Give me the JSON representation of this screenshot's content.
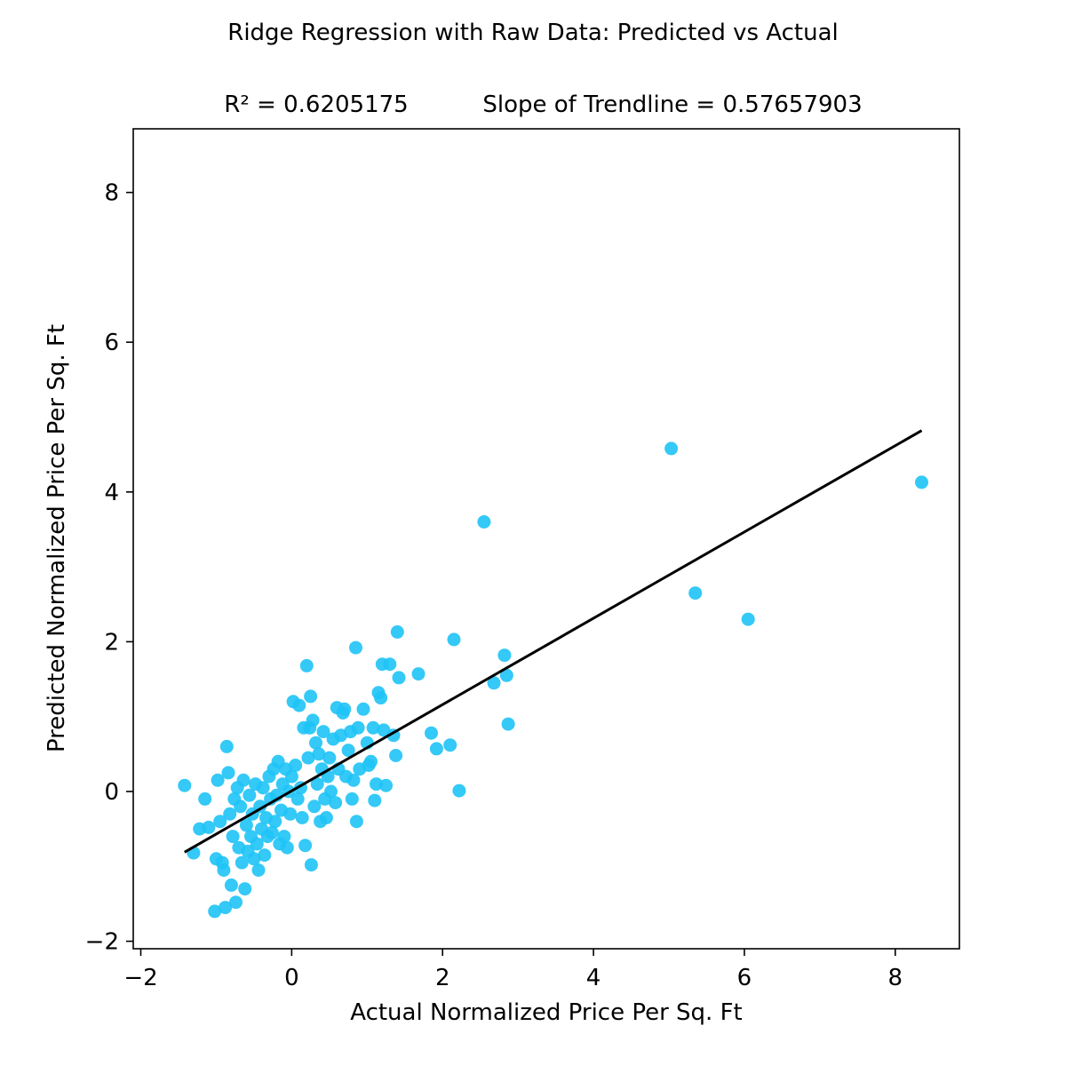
{
  "chart_data": {
    "type": "scatter",
    "title": "Ridge Regression with Raw Data: Predicted vs Actual",
    "subtitle_left": "R² = 0.6205175",
    "subtitle_right": "Slope of Trendline = 0.57657903",
    "xlabel": "Actual Normalized Price Per Sq. Ft",
    "ylabel": "Predicted Normalized Price Per Sq. Ft",
    "xlim": [
      -2.1,
      8.85
    ],
    "ylim": [
      -2.1,
      8.85
    ],
    "xticks": [
      -2,
      0,
      2,
      4,
      6,
      8
    ],
    "yticks": [
      -2,
      0,
      2,
      4,
      6,
      8
    ],
    "xtick_labels": [
      "−2",
      "0",
      "2",
      "4",
      "6",
      "8"
    ],
    "ytick_labels": [
      "−2",
      "0",
      "2",
      "4",
      "6",
      "8"
    ],
    "grid": false,
    "point_color": "#1EC3F6",
    "line_color": "#000000",
    "trendline": {
      "x": [
        -1.42,
        8.35
      ],
      "y": [
        -0.81,
        4.82
      ]
    },
    "points": [
      [
        -1.42,
        0.08
      ],
      [
        -1.3,
        -0.82
      ],
      [
        -1.22,
        -0.5
      ],
      [
        -1.15,
        -0.1
      ],
      [
        -1.1,
        -0.48
      ],
      [
        -1.02,
        -1.6
      ],
      [
        -1.0,
        -0.9
      ],
      [
        -0.98,
        0.15
      ],
      [
        -0.95,
        -0.4
      ],
      [
        -0.92,
        -0.95
      ],
      [
        -0.9,
        -1.05
      ],
      [
        -0.88,
        -1.55
      ],
      [
        -0.86,
        0.6
      ],
      [
        -0.84,
        0.25
      ],
      [
        -0.82,
        -0.3
      ],
      [
        -0.8,
        -1.25
      ],
      [
        -0.78,
        -0.6
      ],
      [
        -0.76,
        -0.1
      ],
      [
        -0.74,
        -1.48
      ],
      [
        -0.72,
        0.05
      ],
      [
        -0.7,
        -0.75
      ],
      [
        -0.68,
        -0.2
      ],
      [
        -0.66,
        -0.95
      ],
      [
        -0.64,
        0.15
      ],
      [
        -0.62,
        -1.3
      ],
      [
        -0.6,
        -0.45
      ],
      [
        -0.58,
        -0.8
      ],
      [
        -0.56,
        -0.05
      ],
      [
        -0.54,
        -0.6
      ],
      [
        -0.52,
        -0.3
      ],
      [
        -0.5,
        -0.9
      ],
      [
        -0.48,
        0.1
      ],
      [
        -0.46,
        -0.7
      ],
      [
        -0.44,
        -1.05
      ],
      [
        -0.42,
        -0.2
      ],
      [
        -0.4,
        -0.5
      ],
      [
        -0.38,
        0.05
      ],
      [
        -0.36,
        -0.85
      ],
      [
        -0.34,
        -0.35
      ],
      [
        -0.32,
        -0.6
      ],
      [
        -0.3,
        0.2
      ],
      [
        -0.28,
        -0.1
      ],
      [
        -0.26,
        -0.55
      ],
      [
        -0.24,
        0.3
      ],
      [
        -0.22,
        -0.4
      ],
      [
        -0.2,
        -0.05
      ],
      [
        -0.18,
        0.4
      ],
      [
        -0.16,
        -0.7
      ],
      [
        -0.14,
        -0.25
      ],
      [
        -0.12,
        0.1
      ],
      [
        -0.1,
        -0.6
      ],
      [
        -0.08,
        0.3
      ],
      [
        -0.06,
        -0.75
      ],
      [
        -0.04,
        0.0
      ],
      [
        -0.02,
        -0.3
      ],
      [
        0.0,
        0.2
      ],
      [
        0.02,
        1.2
      ],
      [
        0.05,
        0.35
      ],
      [
        0.08,
        -0.1
      ],
      [
        0.1,
        1.15
      ],
      [
        0.12,
        0.05
      ],
      [
        0.14,
        -0.35
      ],
      [
        0.16,
        0.85
      ],
      [
        0.18,
        -0.72
      ],
      [
        0.2,
        1.68
      ],
      [
        0.22,
        0.45
      ],
      [
        0.24,
        0.85
      ],
      [
        0.25,
        1.27
      ],
      [
        0.26,
        -0.98
      ],
      [
        0.28,
        0.95
      ],
      [
        0.3,
        -0.2
      ],
      [
        0.32,
        0.65
      ],
      [
        0.34,
        0.1
      ],
      [
        0.36,
        0.5
      ],
      [
        0.38,
        -0.4
      ],
      [
        0.4,
        0.3
      ],
      [
        0.42,
        0.8
      ],
      [
        0.44,
        -0.1
      ],
      [
        0.46,
        -0.35
      ],
      [
        0.48,
        0.2
      ],
      [
        0.5,
        0.45
      ],
      [
        0.52,
        0.0
      ],
      [
        0.55,
        0.7
      ],
      [
        0.58,
        -0.15
      ],
      [
        0.6,
        1.12
      ],
      [
        0.62,
        0.3
      ],
      [
        0.65,
        0.75
      ],
      [
        0.68,
        1.05
      ],
      [
        0.7,
        1.1
      ],
      [
        0.72,
        0.2
      ],
      [
        0.75,
        0.55
      ],
      [
        0.78,
        0.8
      ],
      [
        0.8,
        -0.1
      ],
      [
        0.82,
        0.15
      ],
      [
        0.85,
        1.92
      ],
      [
        0.86,
        -0.4
      ],
      [
        0.88,
        0.85
      ],
      [
        0.9,
        0.3
      ],
      [
        0.95,
        1.1
      ],
      [
        1.0,
        0.65
      ],
      [
        1.02,
        0.35
      ],
      [
        1.05,
        0.4
      ],
      [
        1.08,
        0.85
      ],
      [
        1.1,
        -0.12
      ],
      [
        1.12,
        0.1
      ],
      [
        1.15,
        1.32
      ],
      [
        1.18,
        1.25
      ],
      [
        1.2,
        1.7
      ],
      [
        1.22,
        0.82
      ],
      [
        1.25,
        0.08
      ],
      [
        1.3,
        1.7
      ],
      [
        1.35,
        0.75
      ],
      [
        1.38,
        0.48
      ],
      [
        1.4,
        2.13
      ],
      [
        1.42,
        1.52
      ],
      [
        1.68,
        1.57
      ],
      [
        1.85,
        0.78
      ],
      [
        1.92,
        0.57
      ],
      [
        2.1,
        0.62
      ],
      [
        2.15,
        2.03
      ],
      [
        2.22,
        0.01
      ],
      [
        2.55,
        3.6
      ],
      [
        2.68,
        1.45
      ],
      [
        2.82,
        1.82
      ],
      [
        2.85,
        1.55
      ],
      [
        2.87,
        0.9
      ],
      [
        5.03,
        4.58
      ],
      [
        5.35,
        2.65
      ],
      [
        6.05,
        2.3
      ],
      [
        8.35,
        4.13
      ]
    ]
  }
}
